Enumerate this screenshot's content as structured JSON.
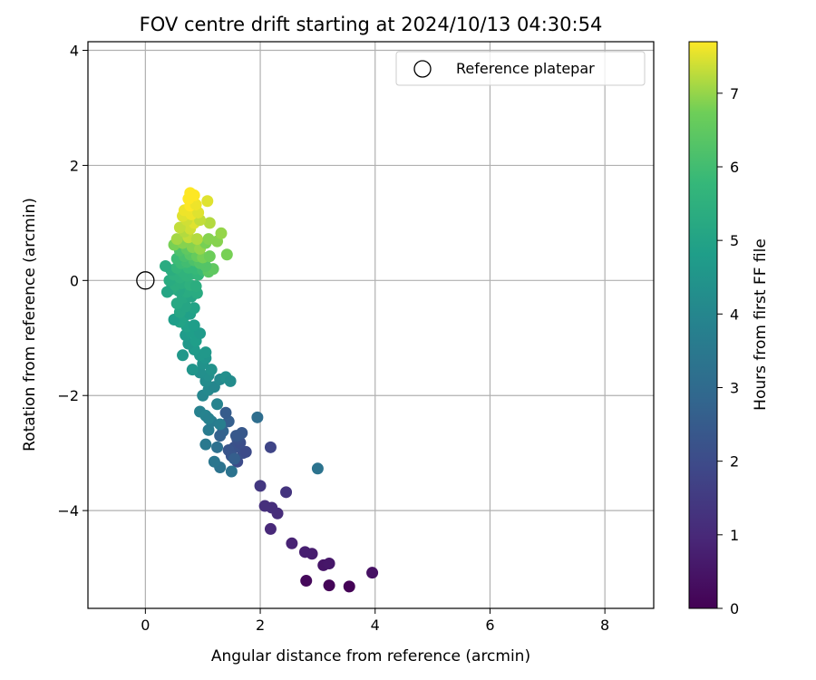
{
  "chart_data": {
    "type": "scatter",
    "title": "FOV centre drift starting at 2024/10/13 04:30:54",
    "xlabel": "Angular distance from reference (arcmin)",
    "ylabel": "Rotation from reference (arcmin)",
    "xlim": [
      -1,
      8.85
    ],
    "ylim": [
      -5.7,
      4.15
    ],
    "xticks": [
      0,
      2,
      4,
      6,
      8
    ],
    "yticks": [
      -4,
      -2,
      0,
      2,
      4
    ],
    "grid": true,
    "legend": {
      "position": "top-right",
      "entries": [
        "Reference platepar"
      ]
    },
    "reference_point": {
      "x": 0,
      "y": 0,
      "label": "Reference platepar"
    },
    "colorbar": {
      "label": "Hours from first FF file",
      "range": [
        0,
        7.7
      ],
      "ticks": [
        0,
        1,
        2,
        3,
        4,
        5,
        6,
        7
      ],
      "colormap": "viridis"
    },
    "series": [
      {
        "color_by": "hours",
        "points": [
          {
            "x": 3.55,
            "y": -5.32,
            "h": 0.05
          },
          {
            "x": 3.2,
            "y": -5.3,
            "h": 0.1
          },
          {
            "x": 2.8,
            "y": -5.22,
            "h": 0.2
          },
          {
            "x": 3.95,
            "y": -5.08,
            "h": 0.4
          },
          {
            "x": 3.1,
            "y": -4.95,
            "h": 0.5
          },
          {
            "x": 3.2,
            "y": -4.92,
            "h": 0.55
          },
          {
            "x": 2.9,
            "y": -4.75,
            "h": 0.7
          },
          {
            "x": 2.78,
            "y": -4.72,
            "h": 0.75
          },
          {
            "x": 2.55,
            "y": -4.57,
            "h": 0.85
          },
          {
            "x": 2.18,
            "y": -4.32,
            "h": 1.0
          },
          {
            "x": 2.3,
            "y": -4.05,
            "h": 1.1
          },
          {
            "x": 2.2,
            "y": -3.95,
            "h": 1.15
          },
          {
            "x": 2.08,
            "y": -3.92,
            "h": 1.2
          },
          {
            "x": 2.45,
            "y": -3.68,
            "h": 1.3
          },
          {
            "x": 2.0,
            "y": -3.57,
            "h": 1.4
          },
          {
            "x": 3.0,
            "y": -3.27,
            "h": 3.3
          },
          {
            "x": 2.18,
            "y": -2.9,
            "h": 1.8
          },
          {
            "x": 1.95,
            "y": -2.38,
            "h": 3.1
          },
          {
            "x": 1.6,
            "y": -3.15,
            "h": 2.0
          },
          {
            "x": 1.7,
            "y": -3.0,
            "h": 2.1
          },
          {
            "x": 1.75,
            "y": -2.98,
            "h": 2.0
          },
          {
            "x": 1.55,
            "y": -2.9,
            "h": 2.2
          },
          {
            "x": 1.45,
            "y": -2.95,
            "h": 2.3
          },
          {
            "x": 1.65,
            "y": -2.82,
            "h": 2.1
          },
          {
            "x": 1.6,
            "y": -2.75,
            "h": 2.2
          },
          {
            "x": 1.5,
            "y": -3.05,
            "h": 2.3
          },
          {
            "x": 1.68,
            "y": -2.65,
            "h": 2.4
          },
          {
            "x": 1.58,
            "y": -2.7,
            "h": 2.4
          },
          {
            "x": 1.45,
            "y": -2.45,
            "h": 2.6
          },
          {
            "x": 1.4,
            "y": -2.3,
            "h": 2.5
          },
          {
            "x": 1.35,
            "y": -2.62,
            "h": 2.8
          },
          {
            "x": 1.3,
            "y": -2.7,
            "h": 2.7
          },
          {
            "x": 1.55,
            "y": -3.1,
            "h": 2.6
          },
          {
            "x": 1.5,
            "y": -3.32,
            "h": 3.3
          },
          {
            "x": 1.3,
            "y": -3.25,
            "h": 3.3
          },
          {
            "x": 1.2,
            "y": -3.15,
            "h": 3.4
          },
          {
            "x": 1.05,
            "y": -2.85,
            "h": 3.5
          },
          {
            "x": 1.25,
            "y": -2.9,
            "h": 3.2
          },
          {
            "x": 1.1,
            "y": -2.6,
            "h": 3.6
          },
          {
            "x": 1.15,
            "y": -2.45,
            "h": 3.6
          },
          {
            "x": 1.3,
            "y": -2.5,
            "h": 3.7
          },
          {
            "x": 0.95,
            "y": -2.28,
            "h": 3.8
          },
          {
            "x": 1.05,
            "y": -2.35,
            "h": 3.9
          },
          {
            "x": 1.1,
            "y": -2.4,
            "h": 3.8
          },
          {
            "x": 1.25,
            "y": -2.15,
            "h": 3.9
          },
          {
            "x": 1.0,
            "y": -2.0,
            "h": 4.0
          },
          {
            "x": 1.1,
            "y": -1.9,
            "h": 4.1
          },
          {
            "x": 1.2,
            "y": -1.85,
            "h": 4.0
          },
          {
            "x": 1.05,
            "y": -1.75,
            "h": 4.2
          },
          {
            "x": 1.3,
            "y": -1.72,
            "h": 4.1
          },
          {
            "x": 1.4,
            "y": -1.68,
            "h": 4.3
          },
          {
            "x": 1.48,
            "y": -1.75,
            "h": 4.2
          },
          {
            "x": 1.1,
            "y": -1.65,
            "h": 4.3
          },
          {
            "x": 1.15,
            "y": -1.55,
            "h": 4.4
          },
          {
            "x": 0.95,
            "y": -1.6,
            "h": 4.3
          },
          {
            "x": 0.82,
            "y": -1.55,
            "h": 4.5
          },
          {
            "x": 1.0,
            "y": -1.45,
            "h": 4.4
          },
          {
            "x": 1.05,
            "y": -1.35,
            "h": 4.5
          },
          {
            "x": 0.95,
            "y": -1.3,
            "h": 4.6
          },
          {
            "x": 1.05,
            "y": -1.25,
            "h": 4.6
          },
          {
            "x": 0.85,
            "y": -1.2,
            "h": 4.7
          },
          {
            "x": 0.75,
            "y": -1.1,
            "h": 4.6
          },
          {
            "x": 0.65,
            "y": -1.3,
            "h": 4.6
          },
          {
            "x": 0.88,
            "y": -1.05,
            "h": 4.8
          },
          {
            "x": 0.7,
            "y": -0.95,
            "h": 4.7
          },
          {
            "x": 0.8,
            "y": -0.9,
            "h": 4.8
          },
          {
            "x": 0.95,
            "y": -0.92,
            "h": 4.7
          },
          {
            "x": 0.72,
            "y": -0.8,
            "h": 4.9
          },
          {
            "x": 0.85,
            "y": -0.78,
            "h": 4.8
          },
          {
            "x": 0.6,
            "y": -0.72,
            "h": 5.0
          },
          {
            "x": 0.5,
            "y": -0.68,
            "h": 4.8
          },
          {
            "x": 0.68,
            "y": -0.62,
            "h": 5.0
          },
          {
            "x": 0.78,
            "y": -0.58,
            "h": 4.9
          },
          {
            "x": 0.6,
            "y": -0.55,
            "h": 5.1
          },
          {
            "x": 0.85,
            "y": -0.48,
            "h": 5.0
          },
          {
            "x": 0.7,
            "y": -0.45,
            "h": 5.1
          },
          {
            "x": 0.55,
            "y": -0.4,
            "h": 5.2
          },
          {
            "x": 0.65,
            "y": -0.3,
            "h": 5.2
          },
          {
            "x": 0.8,
            "y": -0.28,
            "h": 5.1
          },
          {
            "x": 0.9,
            "y": -0.22,
            "h": 5.3
          },
          {
            "x": 0.72,
            "y": -0.2,
            "h": 5.3
          },
          {
            "x": 0.58,
            "y": -0.18,
            "h": 5.2
          },
          {
            "x": 0.45,
            "y": -0.15,
            "h": 5.3
          },
          {
            "x": 0.38,
            "y": -0.2,
            "h": 5.1
          },
          {
            "x": 0.52,
            "y": -0.08,
            "h": 5.4
          },
          {
            "x": 0.62,
            "y": -0.05,
            "h": 5.4
          },
          {
            "x": 0.78,
            "y": -0.08,
            "h": 5.5
          },
          {
            "x": 0.88,
            "y": -0.1,
            "h": 5.4
          },
          {
            "x": 0.42,
            "y": 0.0,
            "h": 5.3
          },
          {
            "x": 0.6,
            "y": 0.05,
            "h": 5.5
          },
          {
            "x": 0.72,
            "y": 0.08,
            "h": 5.6
          },
          {
            "x": 0.5,
            "y": 0.1,
            "h": 5.5
          },
          {
            "x": 0.82,
            "y": 0.12,
            "h": 5.6
          },
          {
            "x": 0.92,
            "y": 0.1,
            "h": 5.7
          },
          {
            "x": 0.65,
            "y": 0.15,
            "h": 5.6
          },
          {
            "x": 0.45,
            "y": 0.18,
            "h": 5.4
          },
          {
            "x": 0.35,
            "y": 0.25,
            "h": 5.3
          },
          {
            "x": 0.55,
            "y": 0.22,
            "h": 5.7
          },
          {
            "x": 0.75,
            "y": 0.22,
            "h": 5.8
          },
          {
            "x": 0.88,
            "y": 0.2,
            "h": 5.8
          },
          {
            "x": 1.0,
            "y": 0.18,
            "h": 5.9
          },
          {
            "x": 1.1,
            "y": 0.15,
            "h": 6.4
          },
          {
            "x": 1.18,
            "y": 0.2,
            "h": 6.5
          },
          {
            "x": 1.05,
            "y": 0.25,
            "h": 6.3
          },
          {
            "x": 0.62,
            "y": 0.3,
            "h": 5.9
          },
          {
            "x": 0.72,
            "y": 0.32,
            "h": 6.0
          },
          {
            "x": 0.85,
            "y": 0.35,
            "h": 6.2
          },
          {
            "x": 0.95,
            "y": 0.3,
            "h": 6.3
          },
          {
            "x": 0.55,
            "y": 0.38,
            "h": 5.9
          },
          {
            "x": 0.68,
            "y": 0.42,
            "h": 6.1
          },
          {
            "x": 0.78,
            "y": 0.45,
            "h": 6.4
          },
          {
            "x": 0.9,
            "y": 0.42,
            "h": 6.6
          },
          {
            "x": 1.0,
            "y": 0.4,
            "h": 6.8
          },
          {
            "x": 1.12,
            "y": 0.42,
            "h": 6.7
          },
          {
            "x": 1.42,
            "y": 0.45,
            "h": 6.8
          },
          {
            "x": 0.6,
            "y": 0.52,
            "h": 6.2
          },
          {
            "x": 0.72,
            "y": 0.55,
            "h": 6.5
          },
          {
            "x": 0.82,
            "y": 0.58,
            "h": 6.9
          },
          {
            "x": 0.95,
            "y": 0.55,
            "h": 7.0
          },
          {
            "x": 0.5,
            "y": 0.62,
            "h": 6.8
          },
          {
            "x": 0.65,
            "y": 0.65,
            "h": 6.9
          },
          {
            "x": 1.05,
            "y": 0.65,
            "h": 6.8
          },
          {
            "x": 1.25,
            "y": 0.68,
            "h": 6.9
          },
          {
            "x": 0.55,
            "y": 0.72,
            "h": 7.1
          },
          {
            "x": 0.75,
            "y": 0.75,
            "h": 7.3
          },
          {
            "x": 0.9,
            "y": 0.72,
            "h": 7.2
          },
          {
            "x": 1.1,
            "y": 0.72,
            "h": 6.9
          },
          {
            "x": 1.32,
            "y": 0.82,
            "h": 7.0
          },
          {
            "x": 0.68,
            "y": 0.85,
            "h": 7.2
          },
          {
            "x": 0.78,
            "y": 0.9,
            "h": 7.4
          },
          {
            "x": 0.6,
            "y": 0.92,
            "h": 7.3
          },
          {
            "x": 0.85,
            "y": 1.0,
            "h": 7.5
          },
          {
            "x": 1.12,
            "y": 1.0,
            "h": 7.2
          },
          {
            "x": 0.72,
            "y": 1.05,
            "h": 7.4
          },
          {
            "x": 0.95,
            "y": 1.05,
            "h": 7.3
          },
          {
            "x": 0.65,
            "y": 1.12,
            "h": 7.5
          },
          {
            "x": 0.8,
            "y": 1.15,
            "h": 7.6
          },
          {
            "x": 0.92,
            "y": 1.18,
            "h": 7.5
          },
          {
            "x": 0.68,
            "y": 1.22,
            "h": 7.6
          },
          {
            "x": 0.78,
            "y": 1.3,
            "h": 7.7
          },
          {
            "x": 0.88,
            "y": 1.32,
            "h": 7.6
          },
          {
            "x": 1.08,
            "y": 1.38,
            "h": 7.5
          },
          {
            "x": 0.75,
            "y": 1.42,
            "h": 7.7
          },
          {
            "x": 0.85,
            "y": 1.48,
            "h": 7.7
          },
          {
            "x": 0.78,
            "y": 1.52,
            "h": 7.7
          }
        ]
      }
    ]
  }
}
